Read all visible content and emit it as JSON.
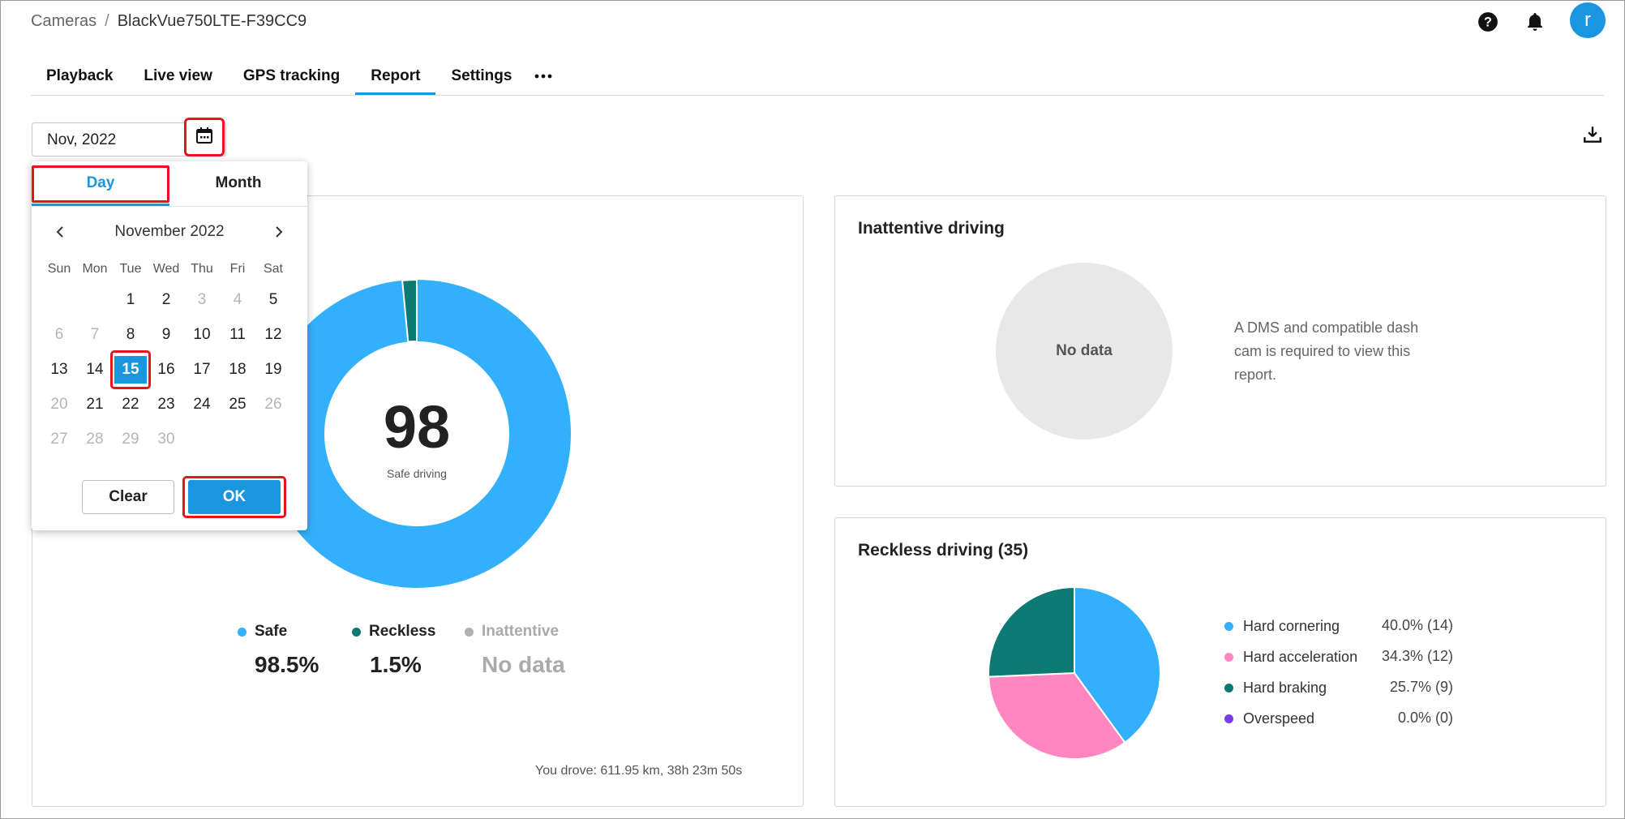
{
  "breadcrumb": {
    "parent": "Cameras",
    "separator": "/",
    "current": "BlackVue750LTE-F39CC9"
  },
  "header": {
    "avatar_initial": "r"
  },
  "tabs": [
    {
      "label": "Playback"
    },
    {
      "label": "Live view"
    },
    {
      "label": "GPS tracking"
    },
    {
      "label": "Report",
      "active": true
    },
    {
      "label": "Settings"
    }
  ],
  "date_field": {
    "value": "Nov, 2022"
  },
  "calendar": {
    "modes": {
      "day": "Day",
      "month": "Month",
      "active": "Day"
    },
    "month_label": "November 2022",
    "weekdays": [
      "Sun",
      "Mon",
      "Tue",
      "Wed",
      "Thu",
      "Fri",
      "Sat"
    ],
    "weeks": [
      [
        null,
        null,
        1,
        2,
        3,
        4,
        5
      ],
      [
        6,
        7,
        8,
        9,
        10,
        11,
        12
      ],
      [
        13,
        14,
        15,
        16,
        17,
        18,
        19
      ],
      [
        20,
        21,
        22,
        23,
        24,
        25,
        26
      ],
      [
        27,
        28,
        29,
        30,
        null,
        null,
        null
      ]
    ],
    "disabled_days": [
      3,
      4,
      6,
      7,
      20,
      26,
      27,
      28,
      29,
      30
    ],
    "selected_day": 15,
    "clear_label": "Clear",
    "ok_label": "OK"
  },
  "safe_driving": {
    "score": "98",
    "score_label": "Safe driving",
    "segments": [
      {
        "name": "Safe",
        "value": 98.5,
        "display": "98.5%",
        "color": "#33b0fb"
      },
      {
        "name": "Reckless",
        "value": 1.5,
        "display": "1.5%",
        "color": "#0a7a72"
      },
      {
        "name": "Inattentive",
        "value": null,
        "display": "No data",
        "color": "#b0b0b0"
      }
    ],
    "drove_text": "You drove: 611.95 km, 38h 23m 50s"
  },
  "inattentive": {
    "title": "Inattentive driving",
    "no_data": "No data",
    "message": "A DMS and compatible dash cam is required to view this report."
  },
  "reckless": {
    "title": "Reckless driving (35)",
    "items": [
      {
        "label": "Hard cornering",
        "value": "40.0% (14)",
        "pct": 40.0,
        "color": "#33b0fb"
      },
      {
        "label": "Hard acceleration",
        "value": "34.3% (12)",
        "pct": 34.3,
        "color": "#ff86c0"
      },
      {
        "label": "Hard braking",
        "value": "25.7% (9)",
        "pct": 25.7,
        "color": "#0a7a72"
      },
      {
        "label": "Overspeed",
        "value": "0.0% (0)",
        "pct": 0.0,
        "color": "#7c3aed"
      }
    ]
  }
}
